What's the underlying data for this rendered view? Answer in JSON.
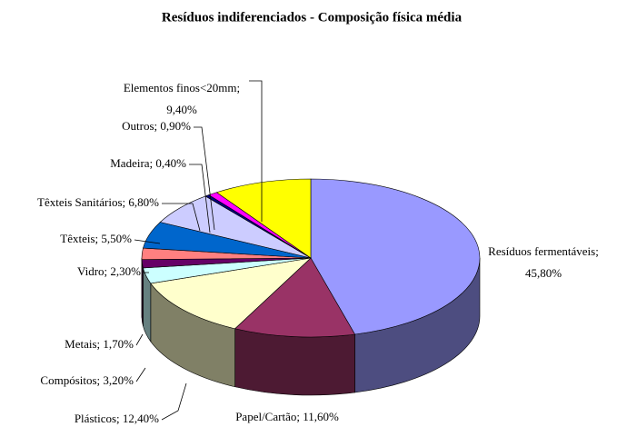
{
  "chart_data": {
    "type": "pie3d",
    "title": "Resíduos indiferenciados - Composição física média",
    "values": [
      45.8,
      11.6,
      12.4,
      3.2,
      1.7,
      2.3,
      5.5,
      6.8,
      0.4,
      0.9,
      9.4
    ],
    "labels": [
      [
        "Resíduos fermentáveis;",
        "45,80%"
      ],
      [
        "Papel/Cartão; 11,60%"
      ],
      [
        "Plásticos; 12,40%"
      ],
      [
        "Compósitos; 3,20%"
      ],
      [
        "Metais; 1,70%"
      ],
      [
        "Vidro; 2,30%"
      ],
      [
        "Têxteis; 5,50%"
      ],
      [
        "Têxteis Sanitários; 6,80%"
      ],
      [
        "Madeira; 0,40%"
      ],
      [
        "Outros; 0,90%"
      ],
      [
        "Elementos finos<20mm;",
        "9,40%"
      ]
    ],
    "colors": [
      "#9999ff",
      "#993366",
      "#ffffcc",
      "#ccffff",
      "#660066",
      "#ff8080",
      "#0066cc",
      "#ccccff",
      "#000080",
      "#ff00ff",
      "#ffff00"
    ]
  }
}
